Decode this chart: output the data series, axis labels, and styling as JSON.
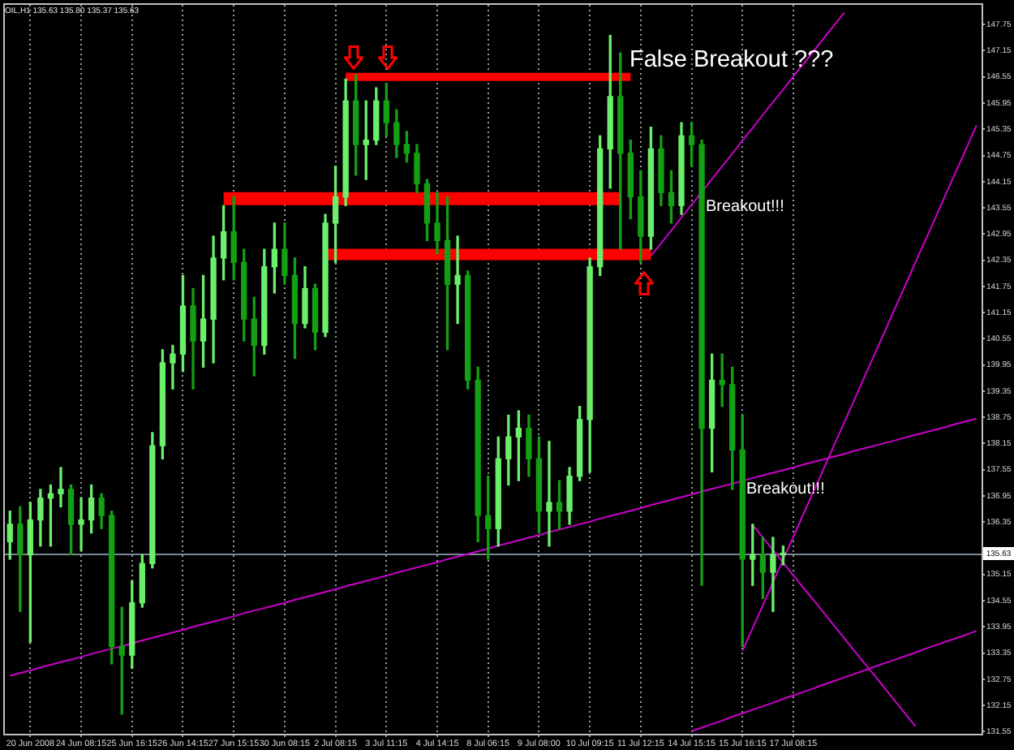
{
  "chart_data": {
    "type": "candlestick",
    "title": "OIL,H1 135.63 135.80 135.37 135.63",
    "categories": [
      null,
      null,
      "20 Jun 2008",
      null,
      null,
      null,
      null,
      "24 Jun 08:15",
      null,
      null,
      null,
      null,
      "25 Jun 16:15",
      null,
      null,
      null,
      null,
      "26 Jun 14:15",
      null,
      null,
      null,
      null,
      "27 Jun 15:15",
      null,
      null,
      null,
      null,
      "30 Jun 08:15",
      null,
      null,
      null,
      null,
      "2 Jul 08:15",
      null,
      null,
      null,
      null,
      "3 Jul 11:15",
      null,
      null,
      null,
      null,
      "4 Jul 14:15",
      null,
      null,
      null,
      null,
      "8 Jul 06:15",
      null,
      null,
      null,
      null,
      "9 Jul 08:00",
      null,
      null,
      null,
      null,
      "10 Jul 09:15",
      null,
      null,
      null,
      null,
      "11 Jul 12:15",
      null,
      null,
      null,
      null,
      "14 Jul 15:15",
      null,
      null,
      null,
      null,
      "15 Jul 16:15",
      null,
      null,
      null,
      null,
      "17 Jul 08:15",
      null,
      null,
      null,
      null,
      null,
      null,
      null,
      null,
      null,
      null,
      null,
      null,
      null,
      null,
      null,
      null,
      null,
      null
    ],
    "ohlc": [
      [
        135.9,
        136.6,
        135.5,
        136.3
      ],
      [
        136.3,
        136.7,
        134.3,
        135.6
      ],
      [
        135.6,
        136.8,
        133.6,
        136.4
      ],
      [
        136.4,
        137.1,
        135.8,
        136.9
      ],
      [
        136.9,
        137.2,
        135.8,
        137.0
      ],
      [
        137.0,
        137.6,
        136.7,
        137.1
      ],
      [
        137.1,
        137.2,
        135.6,
        136.3
      ],
      [
        136.3,
        136.9,
        135.7,
        136.4
      ],
      [
        136.4,
        137.2,
        136.1,
        136.9
      ],
      [
        136.9,
        137.0,
        136.2,
        136.5
      ],
      [
        136.5,
        136.6,
        133.1,
        133.5
      ],
      [
        133.5,
        134.4,
        131.95,
        133.3
      ],
      [
        133.3,
        135.0,
        133.0,
        134.5
      ],
      [
        134.5,
        135.6,
        134.4,
        135.4
      ],
      [
        135.4,
        138.4,
        135.3,
        138.1
      ],
      [
        138.1,
        140.3,
        137.8,
        140.0
      ],
      [
        140.0,
        140.4,
        139.4,
        140.2
      ],
      [
        140.2,
        142.0,
        139.8,
        141.3
      ],
      [
        141.3,
        141.7,
        139.4,
        140.5
      ],
      [
        140.5,
        142.0,
        139.9,
        141.0
      ],
      [
        141.0,
        142.9,
        140.0,
        142.4
      ],
      [
        142.4,
        143.6,
        141.9,
        143.0
      ],
      [
        143.0,
        143.8,
        141.9,
        142.3
      ],
      [
        142.3,
        142.6,
        140.5,
        141.0
      ],
      [
        141.0,
        141.5,
        139.7,
        140.4
      ],
      [
        140.4,
        142.6,
        140.2,
        142.2
      ],
      [
        142.2,
        143.2,
        141.6,
        142.6
      ],
      [
        142.6,
        143.2,
        141.8,
        142.0
      ],
      [
        142.0,
        142.4,
        140.1,
        140.9
      ],
      [
        140.9,
        142.2,
        140.8,
        141.7
      ],
      [
        141.7,
        141.8,
        140.3,
        140.7
      ],
      [
        140.7,
        143.4,
        140.6,
        143.2
      ],
      [
        143.2,
        144.5,
        142.3,
        143.8
      ],
      [
        143.8,
        146.5,
        143.6,
        146.0
      ],
      [
        146.0,
        146.6,
        144.3,
        145.0
      ],
      [
        145.0,
        146.0,
        144.2,
        145.1
      ],
      [
        145.1,
        146.3,
        145.0,
        146.0
      ],
      [
        146.0,
        146.4,
        145.2,
        145.5
      ],
      [
        145.5,
        145.8,
        144.7,
        145.0
      ],
      [
        145.0,
        145.3,
        144.6,
        144.8
      ],
      [
        144.8,
        145.0,
        143.9,
        144.1
      ],
      [
        144.1,
        144.2,
        142.8,
        143.2
      ],
      [
        143.2,
        143.9,
        142.5,
        142.8
      ],
      [
        142.8,
        143.8,
        140.3,
        141.8
      ],
      [
        141.8,
        142.9,
        140.9,
        142.0
      ],
      [
        142.0,
        142.1,
        139.4,
        139.6
      ],
      [
        139.6,
        139.9,
        135.9,
        136.5
      ],
      [
        136.5,
        137.4,
        135.5,
        136.2
      ],
      [
        136.2,
        138.3,
        135.8,
        137.8
      ],
      [
        137.8,
        138.8,
        137.2,
        138.3
      ],
      [
        138.3,
        138.9,
        137.3,
        138.5
      ],
      [
        138.5,
        138.8,
        137.4,
        137.8
      ],
      [
        137.8,
        138.3,
        136.1,
        136.6
      ],
      [
        136.6,
        138.2,
        135.8,
        136.8
      ],
      [
        136.8,
        137.3,
        136.2,
        136.6
      ],
      [
        136.6,
        137.6,
        136.3,
        137.4
      ],
      [
        137.4,
        139.0,
        137.3,
        138.7
      ],
      [
        138.7,
        142.4,
        137.5,
        142.2
      ],
      [
        142.2,
        145.2,
        142.0,
        144.9
      ],
      [
        144.9,
        147.5,
        144.0,
        146.1
      ],
      [
        146.1,
        147.1,
        142.6,
        144.8
      ],
      [
        144.8,
        145.1,
        143.3,
        143.8
      ],
      [
        143.8,
        144.4,
        142.3,
        142.9
      ],
      [
        142.9,
        145.4,
        142.6,
        144.9
      ],
      [
        144.9,
        145.2,
        143.6,
        143.9
      ],
      [
        143.9,
        144.4,
        143.2,
        143.6
      ],
      [
        143.6,
        145.5,
        143.4,
        145.2
      ],
      [
        145.2,
        145.5,
        144.5,
        145.0
      ],
      [
        145.0,
        145.1,
        134.9,
        138.5
      ],
      [
        138.5,
        140.2,
        137.5,
        139.6
      ],
      [
        139.6,
        140.2,
        139.0,
        139.5
      ],
      [
        139.5,
        139.9,
        137.1,
        138.0
      ],
      [
        138.0,
        138.8,
        133.5,
        135.5
      ],
      [
        135.5,
        136.3,
        134.9,
        135.6
      ],
      [
        135.6,
        136.0,
        134.6,
        135.2
      ],
      [
        135.2,
        136.0,
        134.3,
        135.6
      ],
      [
        135.6,
        135.8,
        135.37,
        135.63
      ],
      null,
      null,
      null,
      null,
      null,
      null,
      null,
      null,
      null,
      null,
      null,
      null,
      null,
      null,
      null,
      null,
      null,
      null,
      null
    ],
    "colors": [
      "#6bef6b",
      "#14a014",
      "#6bef6b",
      "#6bef6b",
      "#6bef6b",
      "#6bef6b",
      "#14a014",
      "#6bef6b",
      "#6bef6b",
      "#14a014",
      "#14a014",
      "#14a014",
      "#6bef6b",
      "#6bef6b",
      "#6bef6b",
      "#6bef6b",
      "#6bef6b",
      "#6bef6b",
      "#14a014",
      "#6bef6b",
      "#6bef6b",
      "#6bef6b",
      "#14a014",
      "#14a014",
      "#14a014",
      "#6bef6b",
      "#6bef6b",
      "#14a014",
      "#14a014",
      "#6bef6b",
      "#14a014",
      "#6bef6b",
      "#6bef6b",
      "#6bef6b",
      "#14a014",
      "#6bef6b",
      "#6bef6b",
      "#14a014",
      "#14a014",
      "#14a014",
      "#14a014",
      "#14a014",
      "#14a014",
      "#14a014",
      "#6bef6b",
      "#14a014",
      "#14a014",
      "#14a014",
      "#6bef6b",
      "#6bef6b",
      "#6bef6b",
      "#14a014",
      "#14a014",
      "#6bef6b",
      "#14a014",
      "#6bef6b",
      "#6bef6b",
      "#6bef6b",
      "#6bef6b",
      "#6bef6b",
      "#14a014",
      "#14a014",
      "#14a014",
      "#6bef6b",
      "#14a014",
      "#14a014",
      "#6bef6b",
      "#14a014",
      "#14a014",
      "#6bef6b",
      "#14a014",
      "#14a014",
      "#14a014",
      "#6bef6b",
      "#14a014",
      "#6bef6b",
      "#6bef6b",
      null,
      null,
      null,
      null,
      null,
      null,
      null,
      null,
      null,
      null,
      null,
      null,
      null,
      null,
      null,
      null,
      null,
      null,
      null
    ],
    "series": [
      {
        "type": "line",
        "color": "#ff0000",
        "values": [
          null,
          null,
          null,
          null,
          null,
          null,
          null,
          null,
          null,
          null,
          null,
          null,
          null,
          null,
          null,
          null,
          null,
          null,
          null,
          null,
          null,
          null,
          null,
          null,
          null,
          null,
          null,
          null,
          null,
          null,
          null,
          null,
          null,
          146.55,
          146.55,
          146.55,
          146.55,
          146.55,
          146.55,
          146.55,
          146.55,
          146.55,
          146.55,
          146.55,
          146.55,
          146.55,
          146.55,
          146.55,
          146.55,
          146.55,
          146.55,
          146.55,
          146.55,
          146.55,
          146.55,
          146.55,
          146.55,
          146.55,
          146.55,
          146.55,
          146.55,
          146.55,
          null,
          null,
          null,
          null,
          null,
          null,
          null,
          null,
          null,
          null,
          null,
          null,
          null,
          null,
          null,
          null,
          null,
          null,
          null,
          null,
          null,
          null,
          null,
          null,
          null,
          null,
          null,
          null,
          null,
          null,
          null,
          null,
          null,
          null
        ]
      },
      {
        "type": "line",
        "color": "#ff0000",
        "values": [
          null,
          null,
          null,
          null,
          null,
          null,
          null,
          null,
          null,
          null,
          null,
          null,
          null,
          null,
          null,
          null,
          null,
          null,
          null,
          null,
          null,
          143.76,
          143.76,
          143.76,
          143.76,
          143.76,
          143.76,
          143.76,
          143.76,
          143.76,
          143.76,
          143.76,
          143.76,
          143.76,
          143.76,
          143.76,
          143.76,
          143.76,
          143.76,
          143.76,
          143.76,
          143.76,
          143.76,
          143.76,
          143.76,
          143.76,
          143.76,
          143.76,
          143.76,
          143.76,
          143.76,
          143.76,
          143.76,
          143.76,
          143.76,
          143.76,
          143.76,
          143.76,
          143.76,
          143.76,
          143.76,
          null,
          null,
          null,
          null,
          null,
          null,
          null,
          null,
          null,
          null,
          null,
          null,
          null,
          null,
          null,
          null,
          null,
          null,
          null,
          null,
          null,
          null,
          null,
          null,
          null,
          null,
          null,
          null,
          null,
          null,
          null,
          null,
          null,
          null,
          null
        ]
      },
      {
        "type": "line",
        "color": "#ff0000",
        "values": [
          null,
          null,
          null,
          null,
          null,
          null,
          null,
          null,
          null,
          null,
          null,
          null,
          null,
          null,
          null,
          null,
          null,
          null,
          null,
          null,
          null,
          null,
          null,
          null,
          null,
          null,
          null,
          null,
          null,
          null,
          null,
          142.48,
          142.48,
          142.48,
          142.48,
          142.48,
          142.48,
          142.48,
          142.48,
          142.48,
          142.48,
          142.48,
          142.48,
          142.48,
          142.48,
          142.48,
          142.48,
          142.48,
          142.48,
          142.48,
          142.48,
          142.48,
          142.48,
          142.48,
          142.48,
          142.48,
          142.48,
          142.48,
          142.48,
          142.48,
          142.48,
          142.48,
          142.48,
          142.48,
          null,
          null,
          null,
          null,
          null,
          null,
          null,
          null,
          null,
          null,
          null,
          null,
          null,
          null,
          null,
          null,
          null,
          null,
          null,
          null,
          null,
          null,
          null,
          null,
          null,
          null,
          null,
          null,
          null,
          null,
          null,
          null
        ]
      },
      {
        "type": "line",
        "color": "#cc00cc",
        "values": [
          132.83,
          132.89,
          132.95,
          133.02,
          133.08,
          133.14,
          133.2,
          133.26,
          133.33,
          133.39,
          133.45,
          133.51,
          133.57,
          133.64,
          133.7,
          133.76,
          133.82,
          133.88,
          133.95,
          134.01,
          134.07,
          134.13,
          134.19,
          134.26,
          134.32,
          134.38,
          134.44,
          134.5,
          134.57,
          134.63,
          134.69,
          134.75,
          134.81,
          134.88,
          134.94,
          135.0,
          135.06,
          135.12,
          135.19,
          135.25,
          135.31,
          135.37,
          135.43,
          135.5,
          135.56,
          135.62,
          135.68,
          135.74,
          135.81,
          135.87,
          135.93,
          135.99,
          136.05,
          136.12,
          136.18,
          136.24,
          136.3,
          136.36,
          136.43,
          136.49,
          136.55,
          136.61,
          136.67,
          136.74,
          136.8,
          136.86,
          136.92,
          136.98,
          137.05,
          137.11,
          137.17,
          137.23,
          137.29,
          137.36,
          137.42,
          137.48,
          137.54,
          137.6,
          137.67,
          137.73,
          137.79,
          137.85,
          137.91,
          137.98,
          138.04,
          138.1,
          138.16,
          138.22,
          138.29,
          138.35,
          138.41,
          138.47,
          138.53,
          138.6,
          138.66,
          138.72
        ]
      },
      {
        "type": "line",
        "color": "#cc00cc",
        "values": [
          null,
          null,
          null,
          null,
          null,
          null,
          null,
          null,
          null,
          null,
          null,
          null,
          null,
          null,
          null,
          null,
          null,
          null,
          null,
          null,
          null,
          null,
          null,
          null,
          null,
          null,
          null,
          null,
          null,
          null,
          null,
          null,
          null,
          null,
          null,
          null,
          null,
          null,
          null,
          null,
          null,
          null,
          null,
          null,
          null,
          null,
          null,
          null,
          null,
          null,
          null,
          null,
          null,
          null,
          null,
          null,
          null,
          null,
          null,
          null,
          null,
          null,
          null,
          142.45,
          142.74,
          143.03,
          143.33,
          143.62,
          143.91,
          144.21,
          144.5,
          144.79,
          145.09,
          145.38,
          145.68,
          145.97,
          146.26,
          146.56,
          146.85,
          147.14,
          147.44,
          147.73,
          148.02,
          null,
          null,
          null,
          null,
          null,
          null,
          null,
          null,
          null,
          null,
          null,
          null,
          null
        ]
      },
      {
        "type": "line",
        "color": "#cc00cc",
        "values": [
          null,
          null,
          null,
          null,
          null,
          null,
          null,
          null,
          null,
          null,
          null,
          null,
          null,
          null,
          null,
          null,
          null,
          null,
          null,
          null,
          null,
          null,
          null,
          null,
          null,
          null,
          null,
          null,
          null,
          null,
          null,
          null,
          null,
          null,
          null,
          null,
          null,
          null,
          null,
          null,
          null,
          null,
          null,
          null,
          null,
          null,
          null,
          null,
          null,
          null,
          null,
          null,
          null,
          null,
          null,
          null,
          null,
          null,
          null,
          null,
          null,
          null,
          null,
          null,
          null,
          null,
          null,
          null,
          null,
          null,
          null,
          null,
          133.4,
          133.92,
          134.44,
          134.97,
          135.49,
          136.01,
          136.54,
          137.06,
          137.58,
          138.11,
          138.63,
          139.15,
          139.68,
          140.2,
          140.72,
          141.25,
          141.77,
          142.3,
          142.82,
          143.34,
          143.87,
          144.39,
          144.91,
          145.44
        ]
      },
      {
        "type": "line",
        "color": "#cc00cc",
        "values": [
          null,
          null,
          null,
          null,
          null,
          null,
          null,
          null,
          null,
          null,
          null,
          null,
          null,
          null,
          null,
          null,
          null,
          null,
          null,
          null,
          null,
          null,
          null,
          null,
          null,
          null,
          null,
          null,
          null,
          null,
          null,
          null,
          null,
          null,
          null,
          null,
          null,
          null,
          null,
          null,
          null,
          null,
          null,
          null,
          null,
          null,
          null,
          null,
          null,
          null,
          null,
          null,
          null,
          null,
          null,
          null,
          null,
          null,
          null,
          null,
          null,
          null,
          null,
          null,
          null,
          null,
          null,
          null,
          null,
          null,
          null,
          null,
          null,
          136.28,
          136.0,
          135.71,
          135.42,
          135.13,
          134.84,
          134.56,
          134.27,
          133.98,
          133.69,
          133.4,
          133.11,
          132.83,
          132.54,
          132.25,
          131.96,
          131.67,
          null,
          null,
          null,
          null,
          null,
          null
        ]
      },
      {
        "type": "line",
        "color": "#cc00cc",
        "values": [
          null,
          null,
          null,
          null,
          null,
          null,
          null,
          null,
          null,
          null,
          null,
          null,
          null,
          null,
          null,
          null,
          null,
          null,
          null,
          null,
          null,
          null,
          null,
          null,
          null,
          null,
          null,
          null,
          null,
          null,
          null,
          null,
          null,
          null,
          null,
          null,
          null,
          null,
          null,
          null,
          null,
          null,
          null,
          null,
          null,
          null,
          null,
          null,
          null,
          null,
          null,
          null,
          null,
          null,
          null,
          null,
          null,
          null,
          null,
          null,
          null,
          null,
          null,
          null,
          null,
          null,
          null,
          131.56,
          131.64,
          131.72,
          131.8,
          131.89,
          131.97,
          132.05,
          132.13,
          132.21,
          132.3,
          132.38,
          132.46,
          132.54,
          132.63,
          132.71,
          132.79,
          132.87,
          132.95,
          133.04,
          133.12,
          133.2,
          133.28,
          133.36,
          133.45,
          133.53,
          133.61,
          133.69,
          133.77,
          133.86
        ]
      }
    ],
    "ylim": [
      131.5,
      148.2
    ],
    "yticks": [
      147.75,
      147.15,
      146.55,
      145.95,
      145.35,
      144.75,
      144.15,
      143.55,
      142.95,
      142.35,
      141.75,
      141.15,
      140.55,
      139.95,
      139.35,
      138.75,
      138.15,
      137.55,
      136.95,
      136.35,
      {
        "value": 135.75,
        "label": null
      },
      135.15,
      134.55,
      133.95,
      133.35,
      132.75,
      132.15,
      131.55
    ],
    "ref_lines": [
      {
        "axis": "y",
        "value": 135.63,
        "label": "135.63",
        "color": "#778899"
      }
    ],
    "annotations": [
      "False Breakout ???",
      "Breakout!!!",
      "Breakout!!!"
    ],
    "grid": "x"
  }
}
